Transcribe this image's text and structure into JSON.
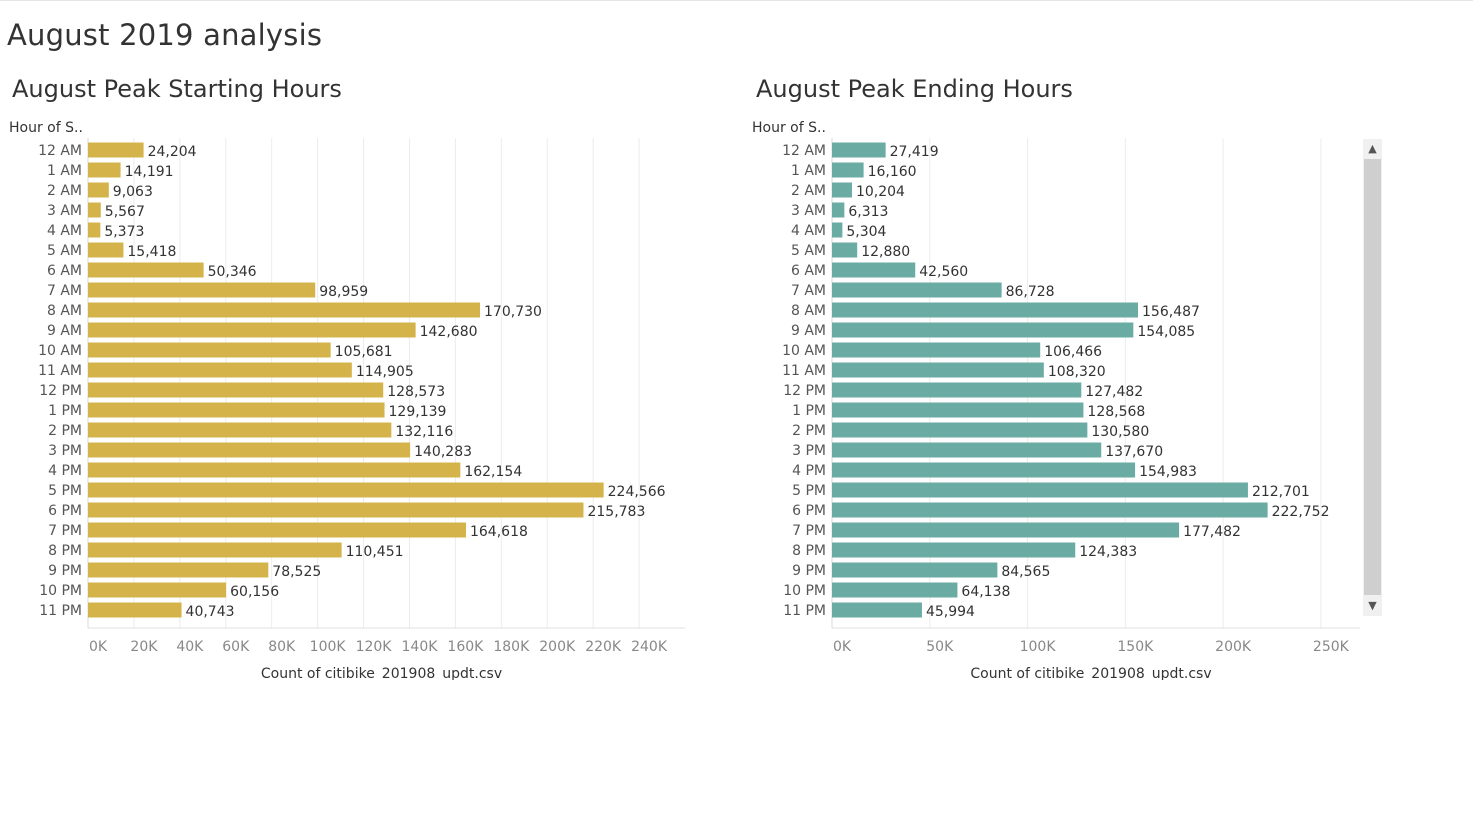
{
  "dashboard": {
    "title": "August 2019 analysis"
  },
  "scrollbar": {
    "up_icon": "chevron-up-icon",
    "down_icon": "chevron-down-icon"
  },
  "chart_data": [
    {
      "type": "bar",
      "orientation": "horizontal",
      "title": "August Peak Starting Hours",
      "row_header": "Hour of S..",
      "xlabel": "Count of citibike_201908_updt.csv",
      "categories": [
        "12 AM",
        "1 AM",
        "2 AM",
        "3 AM",
        "4 AM",
        "5 AM",
        "6 AM",
        "7 AM",
        "8 AM",
        "9 AM",
        "10 AM",
        "11 AM",
        "12 PM",
        "1 PM",
        "2 PM",
        "3 PM",
        "4 PM",
        "5 PM",
        "6 PM",
        "7 PM",
        "8 PM",
        "9 PM",
        "10 PM",
        "11 PM"
      ],
      "values": [
        24204,
        14191,
        9063,
        5567,
        5373,
        15418,
        50346,
        98959,
        170730,
        142680,
        105681,
        114905,
        128573,
        129139,
        132116,
        140283,
        162154,
        224566,
        215783,
        164618,
        110451,
        78525,
        60156,
        40743
      ],
      "value_labels": [
        "24,204",
        "14,191",
        "9,063",
        "5,567",
        "5,373",
        "15,418",
        "50,346",
        "98,959",
        "170,730",
        "142,680",
        "105,681",
        "114,905",
        "128,573",
        "129,139",
        "132,116",
        "140,283",
        "162,154",
        "224,566",
        "215,783",
        "164,618",
        "110,451",
        "78,525",
        "60,156",
        "40,743"
      ],
      "xticks": [
        0,
        20000,
        40000,
        60000,
        80000,
        100000,
        120000,
        140000,
        160000,
        180000,
        200000,
        220000,
        240000
      ],
      "xtick_labels": [
        "0K",
        "20K",
        "40K",
        "60K",
        "80K",
        "100K",
        "120K",
        "140K",
        "160K",
        "180K",
        "200K",
        "220K",
        "240K"
      ],
      "xlim": [
        0,
        260000
      ],
      "grid": true,
      "color": "#d4b44a"
    },
    {
      "type": "bar",
      "orientation": "horizontal",
      "title": "August Peak Ending Hours",
      "row_header": "Hour of S..",
      "xlabel": "Count of citibike_201908_updt.csv",
      "categories": [
        "12 AM",
        "1 AM",
        "2 AM",
        "3 AM",
        "4 AM",
        "5 AM",
        "6 AM",
        "7 AM",
        "8 AM",
        "9 AM",
        "10 AM",
        "11 AM",
        "12 PM",
        "1 PM",
        "2 PM",
        "3 PM",
        "4 PM",
        "5 PM",
        "6 PM",
        "7 PM",
        "8 PM",
        "9 PM",
        "10 PM",
        "11 PM"
      ],
      "values": [
        27419,
        16160,
        10204,
        6313,
        5304,
        12880,
        42560,
        86728,
        156487,
        154085,
        106466,
        108320,
        127482,
        128568,
        130580,
        137670,
        154983,
        212701,
        222752,
        177482,
        124383,
        84565,
        64138,
        45994
      ],
      "value_labels": [
        "27,419",
        "16,160",
        "10,204",
        "6,313",
        "5,304",
        "12,880",
        "42,560",
        "86,728",
        "156,487",
        "154,085",
        "106,466",
        "108,320",
        "127,482",
        "128,568",
        "130,580",
        "137,670",
        "154,983",
        "212,701",
        "222,752",
        "177,482",
        "124,383",
        "84,565",
        "64,138",
        "45,994"
      ],
      "xticks": [
        0,
        50000,
        100000,
        150000,
        200000,
        250000
      ],
      "xtick_labels": [
        "0K",
        "50K",
        "100K",
        "150K",
        "200K",
        "250K"
      ],
      "xlim": [
        0,
        270000
      ],
      "grid": true,
      "color": "#6aaba3"
    }
  ]
}
